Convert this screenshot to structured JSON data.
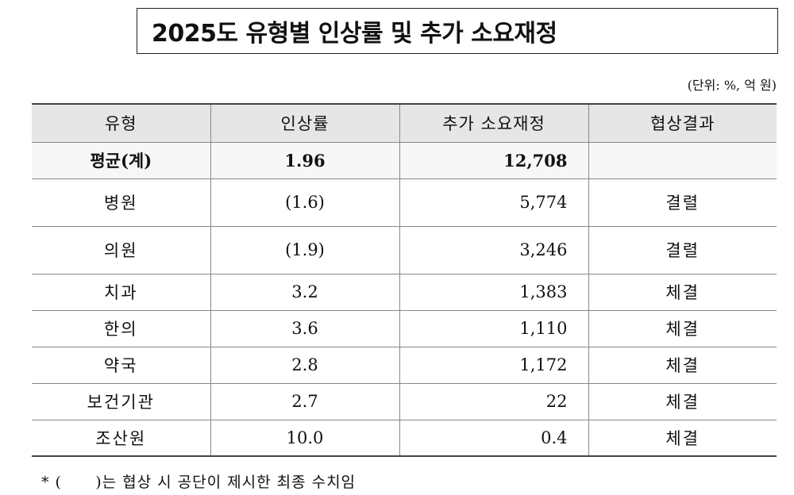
{
  "title": "2025도 유형별 인상률 및 추가 소요재정",
  "unit_note": "(단위: %, 억 원)",
  "table": {
    "headers": [
      "유형",
      "인상률",
      "추가 소요재정",
      "협상결과"
    ],
    "average": {
      "type": "평균(계)",
      "rate": "1.96",
      "budget": "12,708",
      "result": ""
    },
    "rows": [
      {
        "type": "병원",
        "rate": "(1.6)",
        "budget": "5,774",
        "result": "결렬"
      },
      {
        "type": "의원",
        "rate": "(1.9)",
        "budget": "3,246",
        "result": "결렬"
      },
      {
        "type": "치과",
        "rate": "3.2",
        "budget": "1,383",
        "result": "체결"
      },
      {
        "type": "한의",
        "rate": "3.6",
        "budget": "1,110",
        "result": "체결"
      },
      {
        "type": "약국",
        "rate": "2.8",
        "budget": "1,172",
        "result": "체결"
      },
      {
        "type": "보건기관",
        "rate": "2.7",
        "budget": "22",
        "result": "체결"
      },
      {
        "type": "조산원",
        "rate": "10.0",
        "budget": "0.4",
        "result": "체결"
      }
    ]
  },
  "footnote": "* (      )는 협상 시 공단이 제시한 최종 수치임"
}
